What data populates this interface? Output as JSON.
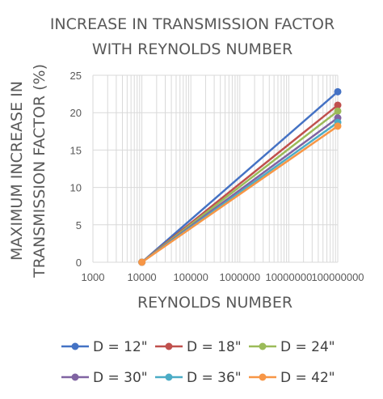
{
  "chart_data": {
    "type": "line",
    "title_lines": [
      "INCREASE IN TRANSMISSION FACTOR",
      "WITH REYNOLDS NUMBER"
    ],
    "xlabel": "REYNOLDS NUMBER",
    "ylabel_lines": [
      "MAXIMUM INCREASE IN",
      "TRANSMISSION FACTOR (%)"
    ],
    "x_scale": "log",
    "xlim": [
      1000,
      100000000
    ],
    "ylim": [
      0,
      25
    ],
    "x_ticks": [
      "1000",
      "10000",
      "100000",
      "1000000",
      "10000000",
      "100000000"
    ],
    "y_ticks": [
      "0",
      "5",
      "10",
      "15",
      "20",
      "25"
    ],
    "grid": true,
    "legend_position": "bottom",
    "x": [
      10000,
      100000000
    ],
    "series": [
      {
        "name": "D = 12\"",
        "values": [
          0,
          22.8
        ],
        "color": "#4472c4"
      },
      {
        "name": "D = 18\"",
        "values": [
          0,
          21.0
        ],
        "color": "#c0504d"
      },
      {
        "name": "D = 24\"",
        "values": [
          0,
          20.2
        ],
        "color": "#9bbb59"
      },
      {
        "name": "D = 30\"",
        "values": [
          0,
          19.3
        ],
        "color": "#8064a2"
      },
      {
        "name": "D = 36\"",
        "values": [
          0,
          18.7
        ],
        "color": "#4bacc6"
      },
      {
        "name": "D = 42\"",
        "values": [
          0,
          18.2
        ],
        "color": "#f79646"
      }
    ]
  }
}
